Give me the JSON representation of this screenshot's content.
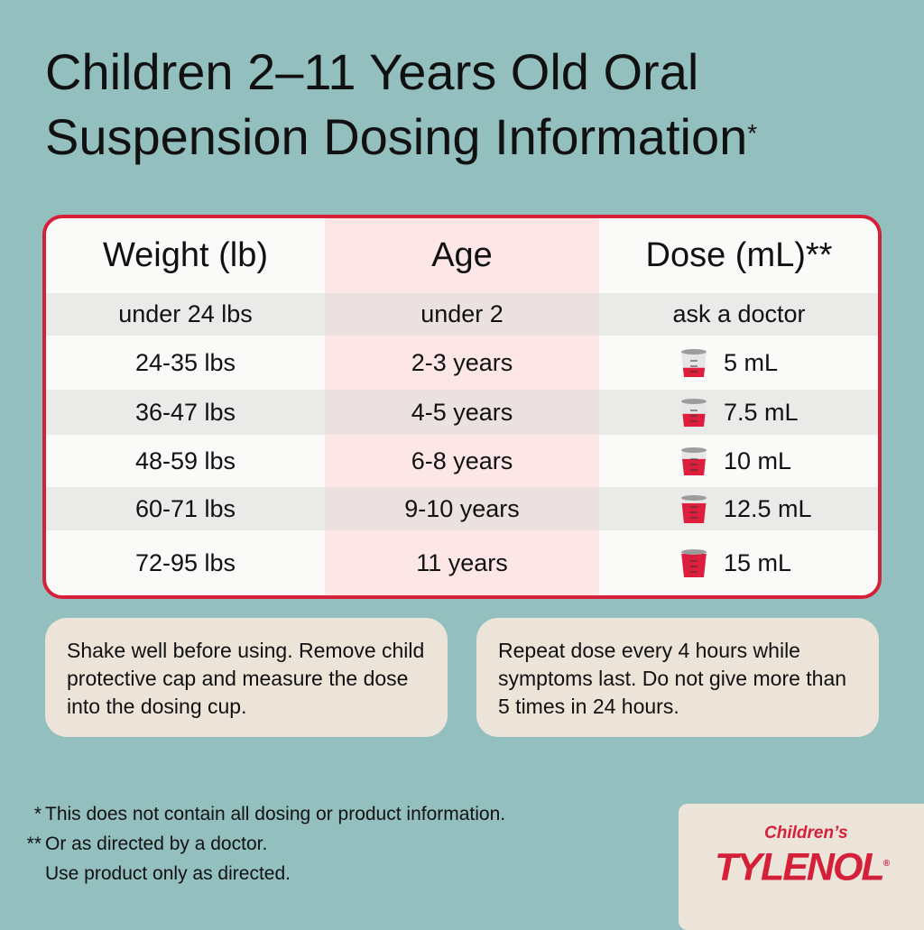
{
  "title": {
    "line1": "Children 2–11 Years Old Oral",
    "line2": "Suspension Dosing Information",
    "mark": "*"
  },
  "table": {
    "headers": [
      "Weight (lb)",
      "Age",
      "Dose (mL)**"
    ],
    "rows": [
      {
        "weight": "under 24 lbs",
        "age": "under 2",
        "dose": "ask a doctor",
        "ml": null
      },
      {
        "weight": "24-35 lbs",
        "age": "2-3 years",
        "dose": "5 mL",
        "ml": 5
      },
      {
        "weight": "36-47 lbs",
        "age": "4-5 years",
        "dose": "7.5 mL",
        "ml": 7.5
      },
      {
        "weight": "48-59 lbs",
        "age": "6-8 years",
        "dose": "10 mL",
        "ml": 10
      },
      {
        "weight": "60-71 lbs",
        "age": "9-10 years",
        "dose": "12.5 mL",
        "ml": 12.5
      },
      {
        "weight": "72-95 lbs",
        "age": "11 years",
        "dose": "15 mL",
        "ml": 15
      }
    ],
    "icon": "dosing-cup-icon"
  },
  "notes": [
    "Shake well before using. Remove child protective cap and measure the dose into the dosing cup.",
    "Repeat dose every 4 hours while symptoms last. Do not give more than 5 times in 24 hours."
  ],
  "footnotes": [
    {
      "mark": "*",
      "text": "This does not contain all dosing or product information."
    },
    {
      "mark": "**",
      "text": "Or as directed by a doctor."
    },
    {
      "mark": "",
      "text": "Use product only as directed."
    }
  ],
  "logo": {
    "line1": "Children’s",
    "line2": "TYLENOL",
    "reg": "®"
  },
  "colors": {
    "background": "#93bfbf",
    "accent": "#d5203a",
    "age_column": "#fde6e6",
    "note_box": "#ece3d9"
  }
}
